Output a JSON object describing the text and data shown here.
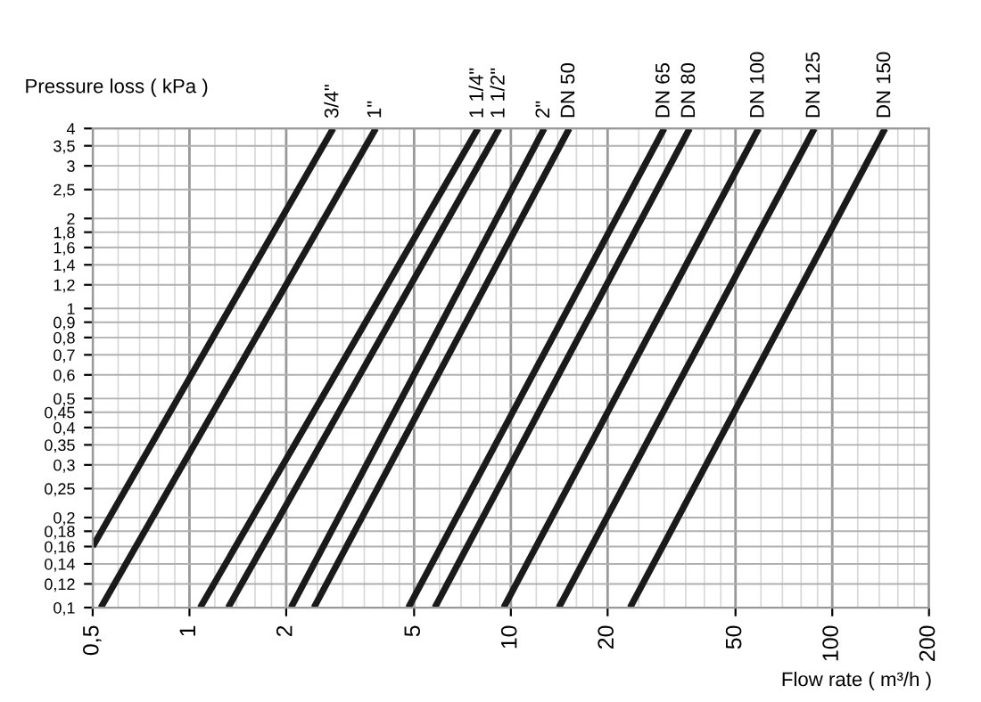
{
  "chart_data": {
    "type": "line",
    "ylabel": "Pressure loss ( kPa )",
    "xlabel": "Flow rate ( m³/h )",
    "log": "xy",
    "grid": true,
    "legend": false,
    "marker": "none",
    "line_style": "solid",
    "xlim": [
      0.5,
      200
    ],
    "ylim": [
      0.1,
      4
    ],
    "xticks": [
      {
        "value": 0.5,
        "label": "0,5"
      },
      1,
      2,
      5,
      10,
      20,
      50,
      100,
      200
    ],
    "yticks": [
      {
        "value": 0.1,
        "label": "0,1"
      },
      {
        "value": 0.12,
        "label": "0,12"
      },
      {
        "value": 0.14,
        "label": "0,14"
      },
      {
        "value": 0.16,
        "label": "0,16"
      },
      {
        "value": 0.18,
        "label": "0,18"
      },
      {
        "value": 0.2,
        "label": "0,2"
      },
      {
        "value": 0.25,
        "label": "0,25"
      },
      {
        "value": 0.3,
        "label": "0,3"
      },
      {
        "value": 0.35,
        "label": "0,35"
      },
      {
        "value": 0.4,
        "label": "0,4"
      },
      {
        "value": 0.45,
        "label": "0,45"
      },
      {
        "value": 0.5,
        "label": "0,5"
      },
      {
        "value": 0.6,
        "label": "0,6"
      },
      {
        "value": 0.7,
        "label": "0,7"
      },
      {
        "value": 0.8,
        "label": "0,8"
      },
      {
        "value": 0.9,
        "label": "0,9"
      },
      1,
      {
        "value": 1.2,
        "label": "1,2"
      },
      {
        "value": 1.4,
        "label": "1,4"
      },
      {
        "value": 1.6,
        "label": "1,6"
      },
      {
        "value": 1.8,
        "label": "1,8"
      },
      2,
      {
        "value": 2.5,
        "label": "2,5"
      },
      3,
      {
        "value": 3.5,
        "label": "3,5"
      },
      4
    ],
    "series": [
      {
        "name": "3/4\"",
        "color": "#1a1a1a",
        "x": [
          0.5,
          2.8
        ],
        "values": [
          0.16,
          4
        ]
      },
      {
        "name": "1\"",
        "color": "#1a1a1a",
        "x": [
          0.53,
          3.8
        ],
        "values": [
          0.1,
          4
        ]
      },
      {
        "name": "1 1/4\"",
        "color": "#1a1a1a",
        "x": [
          1.08,
          7.9
        ],
        "values": [
          0.1,
          4
        ]
      },
      {
        "name": "1 1/2\"",
        "color": "#1a1a1a",
        "x": [
          1.32,
          9.2
        ],
        "values": [
          0.1,
          4
        ]
      },
      {
        "name": "2\"",
        "color": "#1a1a1a",
        "x": [
          2.07,
          12.7
        ],
        "values": [
          0.1,
          4
        ]
      },
      {
        "name": "DN 50",
        "color": "#1a1a1a",
        "x": [
          2.44,
          15.2
        ],
        "values": [
          0.1,
          4
        ]
      },
      {
        "name": "DN 65",
        "color": "#1a1a1a",
        "x": [
          4.8,
          30
        ],
        "values": [
          0.1,
          4
        ]
      },
      {
        "name": "DN 80",
        "color": "#1a1a1a",
        "x": [
          5.8,
          36
        ],
        "values": [
          0.1,
          4
        ]
      },
      {
        "name": "DN 100",
        "color": "#1a1a1a",
        "x": [
          9.5,
          59
        ],
        "values": [
          0.1,
          4
        ]
      },
      {
        "name": "DN 125",
        "color": "#1a1a1a",
        "x": [
          14.1,
          88
        ],
        "values": [
          0.1,
          4
        ]
      },
      {
        "name": "DN 150",
        "color": "#1a1a1a",
        "x": [
          23.5,
          146
        ],
        "values": [
          0.1,
          4
        ]
      }
    ]
  }
}
